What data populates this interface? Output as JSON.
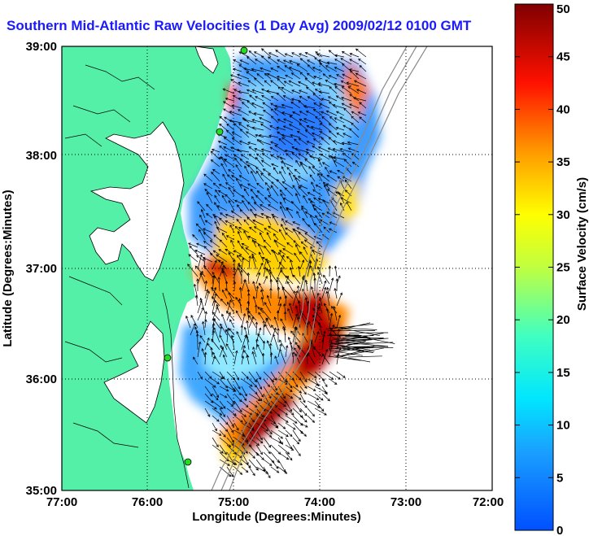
{
  "title": "Southern Mid-Atlantic Raw Velocities (1 Day Avg) 2009/02/12 0100 GMT",
  "axes": {
    "xlabel": "Longitude (Degrees:Minutes)",
    "ylabel": "Latitude (Degrees:Minutes)",
    "x_ticks": [
      "77:00",
      "76:00",
      "75:00",
      "74:00",
      "73:00",
      "72:00"
    ],
    "y_ticks": [
      "39:00",
      "38:00",
      "37:00",
      "36:00",
      "35:00"
    ]
  },
  "colorbar": {
    "label": "Surface Velocity (cm/s)",
    "ticks": [
      "50",
      "45",
      "40",
      "35",
      "30",
      "25",
      "20",
      "15",
      "10",
      "5",
      "0"
    ],
    "min": 0,
    "max": 50
  },
  "colors": {
    "land": "#55f0a8",
    "title": "#1a1aff",
    "station": "#22dd22"
  }
}
